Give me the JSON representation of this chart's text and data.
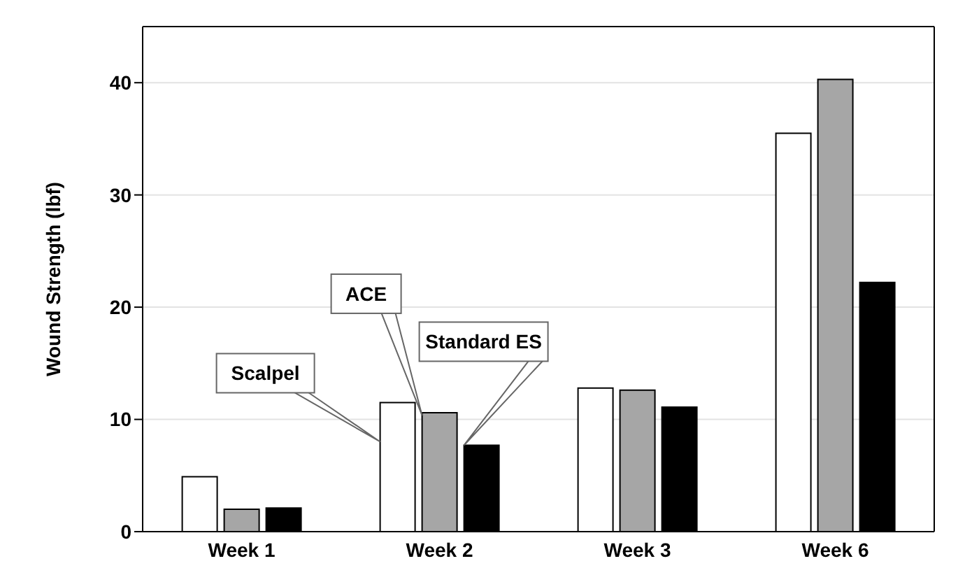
{
  "chart_data": {
    "type": "bar",
    "ylabel": "Wound Strength (lbf)",
    "categories": [
      "Week 1",
      "Week 2",
      "Week 3",
      "Week 6"
    ],
    "series": [
      {
        "color": "#ffffff",
        "values": [
          4.9,
          11.5,
          12.8,
          35.5
        ]
      },
      {
        "color": "#a6a6a6",
        "values": [
          2.0,
          10.6,
          12.6,
          40.3
        ]
      },
      {
        "color": "#000000",
        "values": [
          2.1,
          7.7,
          11.1,
          22.2
        ]
      }
    ],
    "annotations": [
      "Scalpel",
      "ACE",
      "Standard ES"
    ],
    "ylim": [
      0,
      45
    ],
    "yticks": [
      0,
      10,
      20,
      30,
      40
    ],
    "grid": "y",
    "legend": false
  }
}
